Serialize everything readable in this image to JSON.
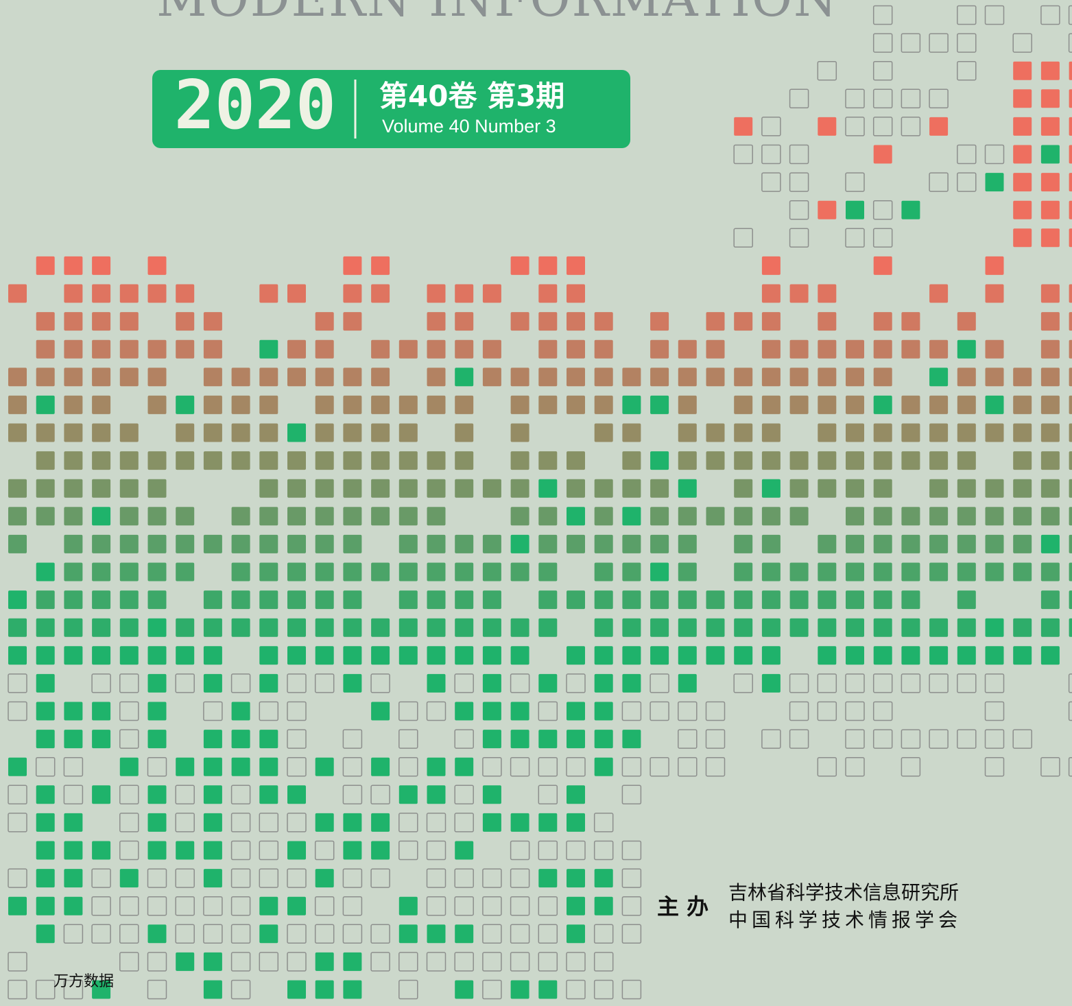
{
  "header": {
    "title": "MODERN INFORMATION",
    "year": "2020",
    "issue_cn": "第40卷 第3期",
    "issue_en": "Volume 40 Number 3"
  },
  "sponsors": {
    "label": "主 办",
    "names": [
      "吉林省科学技术信息研究所",
      "中国科学技术情报学会"
    ]
  },
  "watermark": "万方数据"
}
